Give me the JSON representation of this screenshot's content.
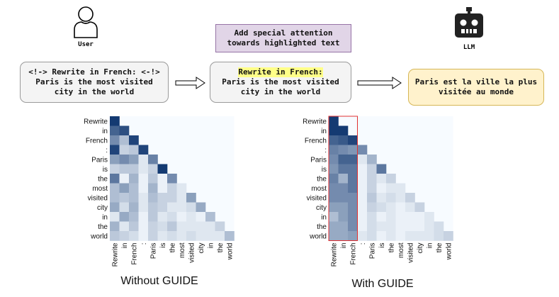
{
  "user": {
    "label": "User"
  },
  "llm": {
    "label": "LLM"
  },
  "prompt_plain": {
    "line1": "<!-> Rewrite in French: <-!>",
    "line2": "Paris is the most visited",
    "line3": "city in the world"
  },
  "attention_note": {
    "line1": "Add special attention",
    "line2": "towards highlighted text"
  },
  "prompt_highlighted": {
    "highlight": "Rewrite in French:",
    "line2": "Paris is the most visited",
    "line3": "city in the world"
  },
  "output": {
    "line1": "Paris est la ville la plus",
    "line2": "visitée au monde"
  },
  "tokens": [
    "Rewrite",
    "in",
    "French",
    ":",
    "Paris",
    "is",
    "the",
    "most",
    "visited",
    "city",
    "in",
    "the",
    "world"
  ],
  "chart_data": [
    {
      "type": "heatmap",
      "title": "Without GUIDE",
      "x": [
        "Rewrite",
        "in",
        "French",
        ":",
        "Paris",
        "is",
        "the",
        "most",
        "visited",
        "city",
        "in",
        "the",
        "world"
      ],
      "y": [
        "Rewrite",
        "in",
        "French",
        ":",
        "Paris",
        "is",
        "the",
        "most",
        "visited",
        "city",
        "in",
        "the",
        "world"
      ],
      "values": [
        [
          0.95
        ],
        [
          0.75,
          0.85
        ],
        [
          0.55,
          0.3,
          0.9
        ],
        [
          0.9,
          0.2,
          0.25,
          0.9
        ],
        [
          0.45,
          0.55,
          0.45,
          0.1,
          0.6
        ],
        [
          0.2,
          0.25,
          0.25,
          0.1,
          0.2,
          0.95
        ],
        [
          0.65,
          0.05,
          0.35,
          0.05,
          0.25,
          0.05,
          0.55
        ],
        [
          0.3,
          0.45,
          0.3,
          0.05,
          0.35,
          0.05,
          0.2,
          0.1
        ],
        [
          0.3,
          0.25,
          0.3,
          0.1,
          0.3,
          0.2,
          0.2,
          0.1,
          0.45
        ],
        [
          0.4,
          0.15,
          0.35,
          0.1,
          0.25,
          0.2,
          0.1,
          0.1,
          0.15,
          0.4
        ],
        [
          0.1,
          0.4,
          0.3,
          0.05,
          0.25,
          0.1,
          0.15,
          0.05,
          0.1,
          0.05,
          0.3
        ],
        [
          0.35,
          0.1,
          0.25,
          0.05,
          0.2,
          0.15,
          0.25,
          0.1,
          0.1,
          0.1,
          0.1,
          0.2
        ],
        [
          0.25,
          0.2,
          0.15,
          0.05,
          0.2,
          0.1,
          0.15,
          0.1,
          0.15,
          0.1,
          0.1,
          0.1,
          0.3
        ]
      ]
    },
    {
      "type": "heatmap",
      "title": "With GUIDE",
      "x": [
        "Rewrite",
        "in",
        "French",
        ":",
        "Paris",
        "is",
        "the",
        "most",
        "visited",
        "city",
        "in",
        "the",
        "world"
      ],
      "y": [
        "Rewrite",
        "in",
        "French",
        ":",
        "Paris",
        "is",
        "the",
        "most",
        "visited",
        "city",
        "in",
        "the",
        "world"
      ],
      "values": [
        [
          0.95
        ],
        [
          0.95,
          0.95
        ],
        [
          0.75,
          0.8,
          0.9
        ],
        [
          0.6,
          0.55,
          0.5,
          0.55
        ],
        [
          0.55,
          0.75,
          0.75,
          0.1,
          0.35
        ],
        [
          0.5,
          0.65,
          0.65,
          0.05,
          0.2,
          0.65
        ],
        [
          0.6,
          0.35,
          0.65,
          0.05,
          0.2,
          0.1,
          0.2
        ],
        [
          0.55,
          0.55,
          0.65,
          0.05,
          0.2,
          0.05,
          0.1,
          0.1
        ],
        [
          0.55,
          0.55,
          0.55,
          0.05,
          0.25,
          0.1,
          0.15,
          0.1,
          0.2
        ],
        [
          0.45,
          0.45,
          0.55,
          0.05,
          0.2,
          0.15,
          0.1,
          0.05,
          0.1,
          0.2
        ],
        [
          0.3,
          0.45,
          0.55,
          0.05,
          0.15,
          0.05,
          0.1,
          0.05,
          0.05,
          0.05,
          0.1
        ],
        [
          0.4,
          0.4,
          0.55,
          0.05,
          0.15,
          0.1,
          0.1,
          0.05,
          0.05,
          0.05,
          0.1,
          0.15
        ],
        [
          0.4,
          0.4,
          0.45,
          0.1,
          0.15,
          0.05,
          0.1,
          0.05,
          0.1,
          0.1,
          0.1,
          0.15,
          0.2
        ]
      ]
    }
  ]
}
